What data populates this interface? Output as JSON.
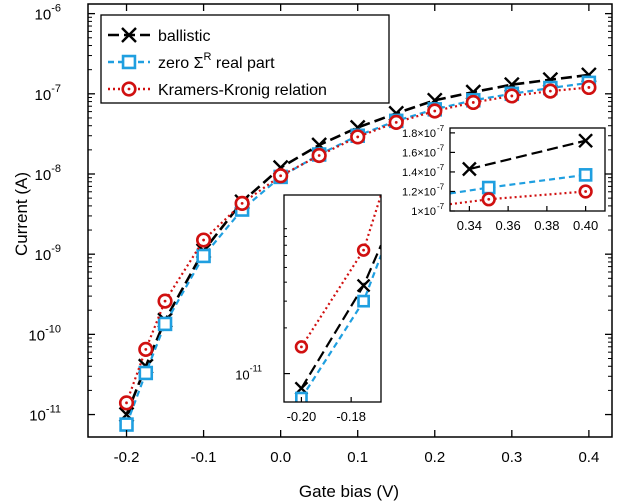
{
  "chart_data": [
    {
      "type": "line",
      "panel": "main",
      "xlabel": "Gate bias (V)",
      "ylabel": "Current (A)",
      "xlim": [
        -0.25,
        0.43
      ],
      "ylim_exp": [
        -11.28,
        -5.88
      ],
      "y_scale": "log",
      "x_ticks": [
        -0.2,
        -0.1,
        0.0,
        0.1,
        0.2,
        0.3,
        0.4
      ],
      "x_tick_labels": [
        "-0.2",
        "-0.1",
        "0.0",
        "0.1",
        "0.2",
        "0.3",
        "0.4"
      ],
      "y_ticks": [
        {
          "base": "10",
          "exp": "-11",
          "value": -11
        },
        {
          "base": "10",
          "exp": "-10",
          "value": -10
        },
        {
          "base": "10",
          "exp": "-9",
          "value": -9
        },
        {
          "base": "10",
          "exp": "-8",
          "value": -8
        },
        {
          "base": "10",
          "exp": "-7",
          "value": -7
        },
        {
          "base": "10",
          "exp": "-6",
          "value": -6
        }
      ],
      "legend": {
        "placement": "top-left"
      },
      "series": [
        {
          "name": "ballistic",
          "color": "#000000",
          "dash": "long",
          "marker": "x",
          "x": [
            -0.2,
            -0.175,
            -0.15,
            -0.1,
            -0.05,
            0.0,
            0.05,
            0.1,
            0.15,
            0.2,
            0.25,
            0.3,
            0.35,
            0.4
          ],
          "y": [
            1e-11,
            4e-11,
            1.5e-10,
            1.1e-09,
            4.5e-09,
            1.2e-08,
            2.3e-08,
            3.8e-08,
            5.7e-08,
            8.3e-08,
            1.05e-07,
            1.3e-07,
            1.5e-07,
            1.72e-07
          ]
        },
        {
          "name": "zero Σ real part",
          "legend_label": {
            "prefix": "zero Σ",
            "sup": "R",
            "suffix": " real part"
          },
          "color": "#1f9fe0",
          "dash": "short",
          "marker": "square",
          "x": [
            -0.2,
            -0.175,
            -0.15,
            -0.1,
            -0.05,
            0.0,
            0.05,
            0.1,
            0.15,
            0.2,
            0.25,
            0.3,
            0.35,
            0.4
          ],
          "y": [
            7.5e-12,
            3.3e-11,
            1.35e-10,
            9.5e-10,
            3.6e-09,
            9.2e-09,
            1.75e-08,
            3e-08,
            4.6e-08,
            6.4e-08,
            8.3e-08,
            1e-07,
            1.18e-07,
            1.37e-07
          ]
        },
        {
          "name": "Kramers-Kronig relation",
          "color": "#d01010",
          "dash": "dotted",
          "marker": "circle",
          "x": [
            -0.2,
            -0.175,
            -0.15,
            -0.1,
            -0.05,
            0.0,
            0.05,
            0.1,
            0.15,
            0.2,
            0.25,
            0.3,
            0.35,
            0.4
          ],
          "y": [
            1.4e-11,
            6.5e-11,
            2.6e-10,
            1.5e-09,
            4.3e-09,
            9.5e-09,
            1.7e-08,
            2.9e-08,
            4.4e-08,
            6.1e-08,
            7.8e-08,
            9.4e-08,
            1.08e-07,
            1.2e-07
          ]
        }
      ]
    },
    {
      "type": "line",
      "panel": "inset-left",
      "y_scale": "log",
      "xlim": [
        -0.207,
        -0.168
      ],
      "ylim": [
        6.5e-12,
        1.5e-10
      ],
      "x_ticks": [
        -0.2,
        -0.18
      ],
      "x_tick_labels": [
        "-0.20",
        "-0.18"
      ],
      "y_ticks": [
        {
          "base": "10",
          "exp": "-11",
          "value": 1e-11
        }
      ],
      "series": [
        {
          "name": "ballistic",
          "x": [
            -0.2,
            -0.175,
            -0.168
          ],
          "y": [
            8e-12,
            3.8e-11,
            7e-11
          ]
        },
        {
          "name": "zero Σ real part",
          "x": [
            -0.2,
            -0.175,
            -0.168
          ],
          "y": [
            6.9e-12,
            3e-11,
            6e-11
          ]
        },
        {
          "name": "Kramers-Kronig relation",
          "x": [
            -0.2,
            -0.175,
            -0.168
          ],
          "y": [
            1.5e-11,
            6.5e-11,
            1.5e-10
          ]
        }
      ]
    },
    {
      "type": "line",
      "panel": "inset-right",
      "y_scale": "linear",
      "xlim": [
        0.33,
        0.41
      ],
      "ylim": [
        1e-07,
        1.85e-07
      ],
      "x_ticks": [
        0.34,
        0.36,
        0.38,
        0.4
      ],
      "x_tick_labels": [
        "0.34",
        "0.36",
        "0.38",
        "0.40"
      ],
      "y_ticks": [
        {
          "mant": "1",
          "exp": "-7",
          "value": 1e-07
        },
        {
          "mant": "1.2",
          "exp": "-7",
          "value": 1.2e-07
        },
        {
          "mant": "1.4",
          "exp": "-7",
          "value": 1.4e-07
        },
        {
          "mant": "1.6",
          "exp": "-7",
          "value": 1.6e-07
        },
        {
          "mant": "1.8",
          "exp": "-7",
          "value": 1.8e-07
        }
      ],
      "series": [
        {
          "name": "ballistic",
          "x": [
            0.34,
            0.4
          ],
          "y": [
            1.43e-07,
            1.72e-07
          ]
        },
        {
          "name": "zero Σ real part",
          "x": [
            0.33,
            0.35,
            0.4
          ],
          "y": [
            1.18e-07,
            1.24e-07,
            1.37e-07
          ]
        },
        {
          "name": "Kramers-Kronig relation",
          "x": [
            0.33,
            0.35,
            0.4
          ],
          "y": [
            1.07e-07,
            1.12e-07,
            1.2e-07
          ]
        }
      ]
    }
  ]
}
